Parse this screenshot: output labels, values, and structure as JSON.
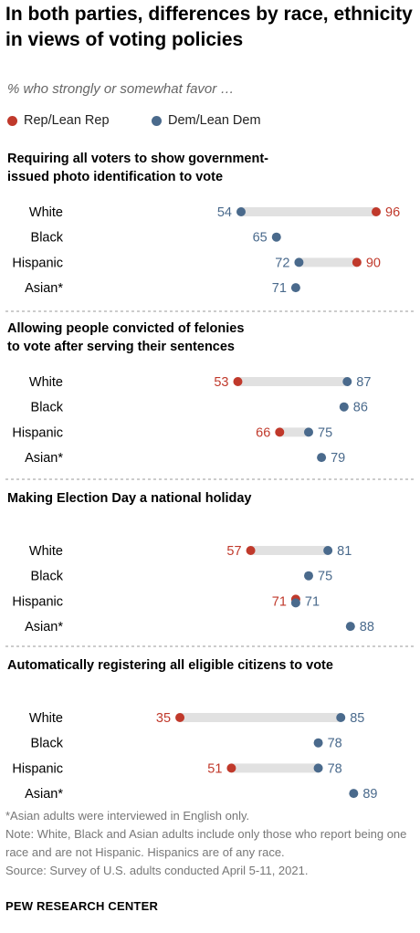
{
  "title": "In both parties, differences by race, ethnicity in views of voting policies",
  "subtitle": "% who strongly or somewhat favor …",
  "legend": {
    "rep_label": "Rep/Lean Rep",
    "dem_label": "Dem/Lean Dem"
  },
  "colors": {
    "rep": "#C0392B",
    "dem": "#4A6A8C",
    "bar": "#E1E1E1"
  },
  "chart_data": {
    "type": "dot",
    "series": [
      {
        "name": "Rep/Lean Rep",
        "key": "rep"
      },
      {
        "name": "Dem/Lean Dem",
        "key": "dem"
      }
    ],
    "panels": [
      {
        "title": "Requiring all voters to show government-issued photo identification to vote",
        "title_lines": [
          "Requiring all voters to show government-",
          "issued photo identification to vote"
        ],
        "rows": [
          {
            "label": "White",
            "rep": 96,
            "dem": 54
          },
          {
            "label": "Black",
            "rep": null,
            "dem": 65
          },
          {
            "label": "Hispanic",
            "rep": 90,
            "dem": 72
          },
          {
            "label": "Asian*",
            "rep": null,
            "dem": 71
          }
        ]
      },
      {
        "title": "Allowing people convicted of felonies to vote after serving their sentences",
        "title_lines": [
          "Allowing people convicted of felonies",
          "to vote after serving their sentences"
        ],
        "rows": [
          {
            "label": "White",
            "rep": 53,
            "dem": 87
          },
          {
            "label": "Black",
            "rep": null,
            "dem": 86
          },
          {
            "label": "Hispanic",
            "rep": 66,
            "dem": 75
          },
          {
            "label": "Asian*",
            "rep": null,
            "dem": 79
          }
        ]
      },
      {
        "title": "Making Election Day a national holiday",
        "title_lines": [
          "Making Election Day a national holiday"
        ],
        "rows": [
          {
            "label": "White",
            "rep": 57,
            "dem": 81
          },
          {
            "label": "Black",
            "rep": null,
            "dem": 75
          },
          {
            "label": "Hispanic",
            "rep": 71,
            "dem": 71
          },
          {
            "label": "Asian*",
            "rep": null,
            "dem": 88
          }
        ]
      },
      {
        "title": "Automatically registering all eligible citizens to vote",
        "title_lines": [
          "Automatically registering all eligible citizens to vote"
        ],
        "rows": [
          {
            "label": "White",
            "rep": 35,
            "dem": 85
          },
          {
            "label": "Black",
            "rep": null,
            "dem": 78
          },
          {
            "label": "Hispanic",
            "rep": 51,
            "dem": 78
          },
          {
            "label": "Asian*",
            "rep": null,
            "dem": 89
          }
        ]
      }
    ]
  },
  "notes": [
    "*Asian adults were interviewed in English only.",
    "Note: White, Black and Asian adults include only those who report being one race and are not Hispanic. Hispanics are of any race.",
    "Source: Survey of U.S. adults conducted April 5-11, 2021."
  ],
  "brand": "PEW RESEARCH CENTER"
}
